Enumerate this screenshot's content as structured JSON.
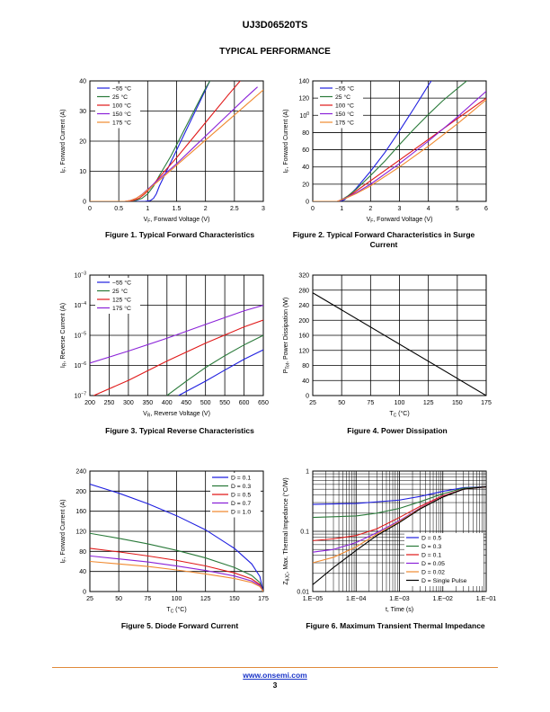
{
  "header": {
    "part_number": "UJ3D06520TS",
    "section_title": "TYPICAL PERFORMANCE"
  },
  "figures": [
    {
      "caption": "Figure 1. Typical Forward Characteristics"
    },
    {
      "caption": "Figure 2. Typical Forward Characteristics in Surge Current"
    },
    {
      "caption": "Figure 3. Typical Reverse Characteristics"
    },
    {
      "caption": "Figure 4. Power Dissipation"
    },
    {
      "caption": "Figure 5. Diode Forward Current"
    },
    {
      "caption": "Figure 6. Maximum Transient Thermal Impedance"
    }
  ],
  "footer": {
    "link": "www.onsemi.com",
    "page": "3"
  },
  "colors": {
    "blue": "#1f1fe0",
    "green": "#2a7a3a",
    "red": "#e01818",
    "purple": "#8a22d8",
    "orange": "#f08a30",
    "black": "#000000",
    "footer_rule": "#e08a3a"
  },
  "chart_data": [
    {
      "type": "line",
      "xlabel": "V_F, Forward Voltage (V)",
      "ylabel": "I_F, Forward Current (A)",
      "xlim": [
        0,
        3
      ],
      "ylim": [
        0,
        40
      ],
      "xticks": [
        0,
        0.5,
        1,
        1.5,
        2,
        2.5,
        3
      ],
      "xtick_labels": [
        "0",
        "0.5",
        "1",
        "1.5",
        "2",
        "2.5",
        "3"
      ],
      "yticks": [
        0,
        10,
        20,
        30,
        40
      ],
      "ytick_labels": [
        "0",
        "10",
        "20",
        "30",
        "40"
      ],
      "grid": true,
      "legend": "top-left",
      "series": [
        {
          "name": "−55 °C",
          "color": "#1f1fe0",
          "x": [
            0,
            0.95,
            1.05,
            1.1,
            1.15,
            1.2,
            1.3,
            1.5,
            1.7,
            1.9,
            2.0,
            2.1,
            2.2
          ],
          "y": [
            0,
            0,
            0.3,
            1,
            2.5,
            5,
            9,
            17,
            25,
            33,
            37,
            41,
            44
          ]
        },
        {
          "name": "25 °C",
          "color": "#2a7a3a",
          "x": [
            0,
            0.7,
            0.8,
            0.9,
            1.0,
            1.1,
            1.2,
            1.4,
            1.6,
            1.8,
            2.0,
            2.2
          ],
          "y": [
            0,
            0,
            0.3,
            1,
            2.5,
            5,
            8.5,
            15,
            22.5,
            30,
            37.5,
            44
          ]
        },
        {
          "name": "100 °C",
          "color": "#e01818",
          "x": [
            0,
            0.65,
            0.75,
            0.85,
            0.95,
            1.05,
            1.2,
            1.5,
            1.8,
            2.1,
            2.4,
            2.6
          ],
          "y": [
            0,
            0,
            0.3,
            1,
            2.5,
            4.5,
            8,
            14.5,
            21.5,
            28.5,
            35.5,
            40
          ]
        },
        {
          "name": "150 °C",
          "color": "#8a22d8",
          "x": [
            0,
            0.6,
            0.7,
            0.8,
            0.9,
            1.0,
            1.2,
            1.5,
            1.8,
            2.1,
            2.4,
            2.7,
            2.9
          ],
          "y": [
            0,
            0,
            0.3,
            1,
            2.3,
            4,
            7.5,
            12.5,
            18,
            23.5,
            29,
            34.5,
            38
          ]
        },
        {
          "name": "175 °C",
          "color": "#f08a30",
          "x": [
            0,
            0.6,
            0.7,
            0.8,
            0.9,
            1.0,
            1.2,
            1.5,
            1.8,
            2.1,
            2.4,
            2.7,
            3.0
          ],
          "y": [
            0,
            0,
            0.3,
            1,
            2.2,
            3.8,
            7,
            12,
            17,
            22,
            27,
            32,
            37
          ]
        }
      ]
    },
    {
      "type": "line",
      "xlabel": "V_F, Forward Voltage (V)",
      "ylabel": "I_F, Forward Current (A)",
      "xlim": [
        0,
        6
      ],
      "ylim": [
        0,
        140
      ],
      "xticks": [
        0,
        1,
        2,
        3,
        4,
        5,
        6
      ],
      "xtick_labels": [
        "0",
        "1",
        "2",
        "3",
        "4",
        "5",
        "6"
      ],
      "yticks": [
        0,
        20,
        40,
        60,
        80,
        100,
        120,
        140
      ],
      "ytick_labels": [
        "0",
        "20",
        "40",
        "60",
        "80",
        "100",
        "120",
        "140"
      ],
      "grid": true,
      "legend": "top-left",
      "series": [
        {
          "name": "−55 °C",
          "color": "#1f1fe0",
          "x": [
            0,
            0.95,
            1.1,
            1.2,
            1.5,
            2.0,
            2.5,
            3.0,
            3.5,
            4.0,
            4.3
          ],
          "y": [
            0,
            0,
            2,
            5,
            15,
            35,
            57,
            82,
            108,
            135,
            150
          ]
        },
        {
          "name": "25 °C",
          "color": "#2a7a3a",
          "x": [
            0,
            0.85,
            1.0,
            1.2,
            1.5,
            2.0,
            2.5,
            3.0,
            3.5,
            4.0,
            4.5,
            5.0,
            5.4
          ],
          "y": [
            0,
            0,
            2,
            6,
            14,
            30,
            47,
            66,
            84,
            101,
            117,
            131,
            142
          ]
        },
        {
          "name": "100 °C",
          "color": "#e01818",
          "x": [
            0,
            0.85,
            1.0,
            1.2,
            1.5,
            2.0,
            3.0,
            4.0,
            5.0,
            6.0
          ],
          "y": [
            0,
            0,
            2,
            5,
            12,
            24,
            48,
            72,
            96,
            120
          ]
        },
        {
          "name": "150 °C",
          "color": "#8a22d8",
          "x": [
            0,
            0.85,
            1.0,
            1.2,
            1.5,
            2.0,
            3.0,
            4.0,
            5.0,
            6.0
          ],
          "y": [
            0,
            0,
            2,
            5,
            10,
            20,
            44,
            70,
            98,
            128
          ]
        },
        {
          "name": "175 °C",
          "color": "#f08a30",
          "x": [
            0,
            0.85,
            1.0,
            1.2,
            1.5,
            2.0,
            3.0,
            4.0,
            5.0,
            6.0
          ],
          "y": [
            0,
            0,
            2,
            4.5,
            9,
            18,
            40,
            64,
            90,
            118
          ]
        }
      ]
    },
    {
      "type": "line",
      "log_y": true,
      "xlabel": "V_R, Reverse Voltage (V)",
      "ylabel": "I_R, Reverse Current (A)",
      "xlim": [
        200,
        650
      ],
      "ylim": [
        1e-07,
        0.001
      ],
      "xticks": [
        200,
        250,
        300,
        350,
        400,
        450,
        500,
        550,
        600,
        650
      ],
      "xtick_labels": [
        "200",
        "250",
        "300",
        "350",
        "400",
        "450",
        "500",
        "550",
        "600",
        "650"
      ],
      "yticks": [
        1e-07,
        1e-06,
        1e-05,
        0.0001,
        0.001
      ],
      "ytick_labels": [
        "10−7",
        "10−6",
        "10−5",
        "10−4",
        "10−3"
      ],
      "grid": true,
      "legend": "top-left",
      "series": [
        {
          "name": "−55 °C",
          "color": "#1f1fe0",
          "x": [
            430,
            500,
            550,
            600,
            650
          ],
          "y": [
            1e-07,
            3e-07,
            7e-07,
            1.6e-06,
            3.3e-06
          ]
        },
        {
          "name": "25 °C",
          "color": "#2a7a3a",
          "x": [
            400,
            450,
            500,
            550,
            600,
            650
          ],
          "y": [
            1e-07,
            3e-07,
            8.5e-07,
            2.1e-06,
            4.8e-06,
            1e-05
          ]
        },
        {
          "name": "125 °C",
          "color": "#e01818",
          "x": [
            210,
            300,
            400,
            500,
            600,
            650
          ],
          "y": [
            1e-07,
            3.2e-07,
            1.4e-06,
            5.5e-06,
            1.9e-05,
            3.2e-05
          ]
        },
        {
          "name": "175 °C",
          "color": "#8a22d8",
          "x": [
            200,
            300,
            400,
            500,
            600,
            650
          ],
          "y": [
            1.2e-06,
            3e-06,
            8e-06,
            2.3e-05,
            6.5e-05,
            0.0001
          ]
        }
      ]
    },
    {
      "type": "line",
      "xlabel": "T_C (°C)",
      "ylabel": "P_Tot, Power Dissipation (W)",
      "xlim": [
        25,
        175
      ],
      "ylim": [
        0,
        320
      ],
      "xticks": [
        25,
        50,
        75,
        100,
        125,
        150,
        175
      ],
      "xtick_labels": [
        "25",
        "50",
        "75",
        "100",
        "125",
        "150",
        "175"
      ],
      "yticks": [
        0,
        40,
        80,
        120,
        160,
        200,
        240,
        280,
        320
      ],
      "ytick_labels": [
        "0",
        "40",
        "80",
        "120",
        "160",
        "200",
        "240",
        "280",
        "320"
      ],
      "grid": true,
      "legend": "none",
      "series": [
        {
          "color": "#000000",
          "x": [
            25,
            175
          ],
          "y": [
            273,
            0
          ]
        }
      ]
    },
    {
      "type": "line",
      "xlabel": "T_C (°C)",
      "ylabel": "I_F, Forward Current (A)",
      "xlim": [
        25,
        175
      ],
      "ylim": [
        0,
        240
      ],
      "xticks": [
        25,
        50,
        75,
        100,
        125,
        150,
        175
      ],
      "xtick_labels": [
        "25",
        "50",
        "75",
        "100",
        "125",
        "150",
        "175"
      ],
      "yticks": [
        0,
        40,
        80,
        120,
        160,
        200,
        240
      ],
      "ytick_labels": [
        "0",
        "40",
        "80",
        "120",
        "160",
        "200",
        "240"
      ],
      "grid": true,
      "legend": "top-right",
      "series": [
        {
          "name": "D = 0.1",
          "color": "#1f1fe0",
          "x": [
            25,
            50,
            75,
            100,
            125,
            150,
            165,
            172,
            175
          ],
          "y": [
            214,
            196,
            175,
            151,
            123,
            86,
            55,
            30,
            0
          ]
        },
        {
          "name": "D = 0.3",
          "color": "#2a7a3a",
          "x": [
            25,
            50,
            75,
            100,
            125,
            150,
            165,
            172,
            175
          ],
          "y": [
            116,
            106,
            95,
            82,
            67,
            48,
            32,
            18,
            0
          ]
        },
        {
          "name": "D = 0.5",
          "color": "#e01818",
          "x": [
            25,
            50,
            75,
            100,
            125,
            150,
            165,
            172,
            175
          ],
          "y": [
            86,
            79,
            71,
            62,
            51,
            37,
            25,
            14,
            0
          ]
        },
        {
          "name": "D = 0.7",
          "color": "#8a22d8",
          "x": [
            25,
            50,
            75,
            100,
            125,
            150,
            165,
            172,
            175
          ],
          "y": [
            71,
            65,
            59,
            51,
            42,
            31,
            21,
            12,
            0
          ]
        },
        {
          "name": "D = 1.0",
          "color": "#f08a30",
          "x": [
            25,
            50,
            75,
            100,
            125,
            150,
            165,
            172,
            175
          ],
          "y": [
            60,
            55,
            50,
            43,
            35,
            26,
            18,
            10,
            0
          ]
        }
      ]
    },
    {
      "type": "line",
      "log_x": true,
      "log_y": true,
      "xlabel": "t, Time (s)",
      "ylabel": "Z_θJC, Max. Thermal Impedance (°C/W)",
      "xlim": [
        1e-05,
        0.1
      ],
      "ylim": [
        0.01,
        1
      ],
      "xticks": [
        1e-05,
        0.0001,
        0.001,
        0.01,
        0.1
      ],
      "xtick_labels": [
        "1.E−05",
        "1.E−04",
        "1.E−03",
        "1.E−02",
        "1.E−01"
      ],
      "yticks": [
        0.01,
        0.1,
        1
      ],
      "ytick_labels": [
        "0.01",
        "0.1",
        "1"
      ],
      "grid": true,
      "legend": "bottom-right",
      "series": [
        {
          "name": "D = 0.5",
          "color": "#1f1fe0",
          "x": [
            1e-05,
            0.0001,
            0.001,
            0.003,
            0.01,
            0.03,
            0.1
          ],
          "y": [
            0.28,
            0.29,
            0.33,
            0.38,
            0.46,
            0.53,
            0.55
          ]
        },
        {
          "name": "D = 0.3",
          "color": "#2a7a3a",
          "x": [
            1e-05,
            0.0001,
            0.0003,
            0.001,
            0.003,
            0.01,
            0.03,
            0.1
          ],
          "y": [
            0.17,
            0.18,
            0.2,
            0.24,
            0.31,
            0.42,
            0.52,
            0.55
          ]
        },
        {
          "name": "D = 0.1",
          "color": "#e01818",
          "x": [
            1e-05,
            3e-05,
            0.0001,
            0.0003,
            0.001,
            0.003,
            0.01,
            0.03,
            0.1
          ],
          "y": [
            0.07,
            0.075,
            0.085,
            0.11,
            0.17,
            0.26,
            0.39,
            0.5,
            0.55
          ]
        },
        {
          "name": "D = 0.05",
          "color": "#8a22d8",
          "x": [
            1e-05,
            3e-05,
            0.0001,
            0.0003,
            0.001,
            0.003,
            0.01,
            0.03,
            0.1
          ],
          "y": [
            0.045,
            0.05,
            0.065,
            0.095,
            0.15,
            0.245,
            0.38,
            0.5,
            0.55
          ]
        },
        {
          "name": "D = 0.02",
          "color": "#f08a30",
          "x": [
            1e-05,
            3e-05,
            0.0001,
            0.0003,
            0.001,
            0.003,
            0.01,
            0.03,
            0.1
          ],
          "y": [
            0.03,
            0.037,
            0.055,
            0.09,
            0.145,
            0.24,
            0.375,
            0.5,
            0.55
          ]
        },
        {
          "name": "D = Single Pulse",
          "color": "#000000",
          "x": [
            1e-05,
            3e-05,
            0.0001,
            0.0003,
            0.001,
            0.003,
            0.01,
            0.03,
            0.1
          ],
          "y": [
            0.013,
            0.025,
            0.048,
            0.085,
            0.14,
            0.235,
            0.37,
            0.5,
            0.55
          ]
        }
      ]
    }
  ]
}
